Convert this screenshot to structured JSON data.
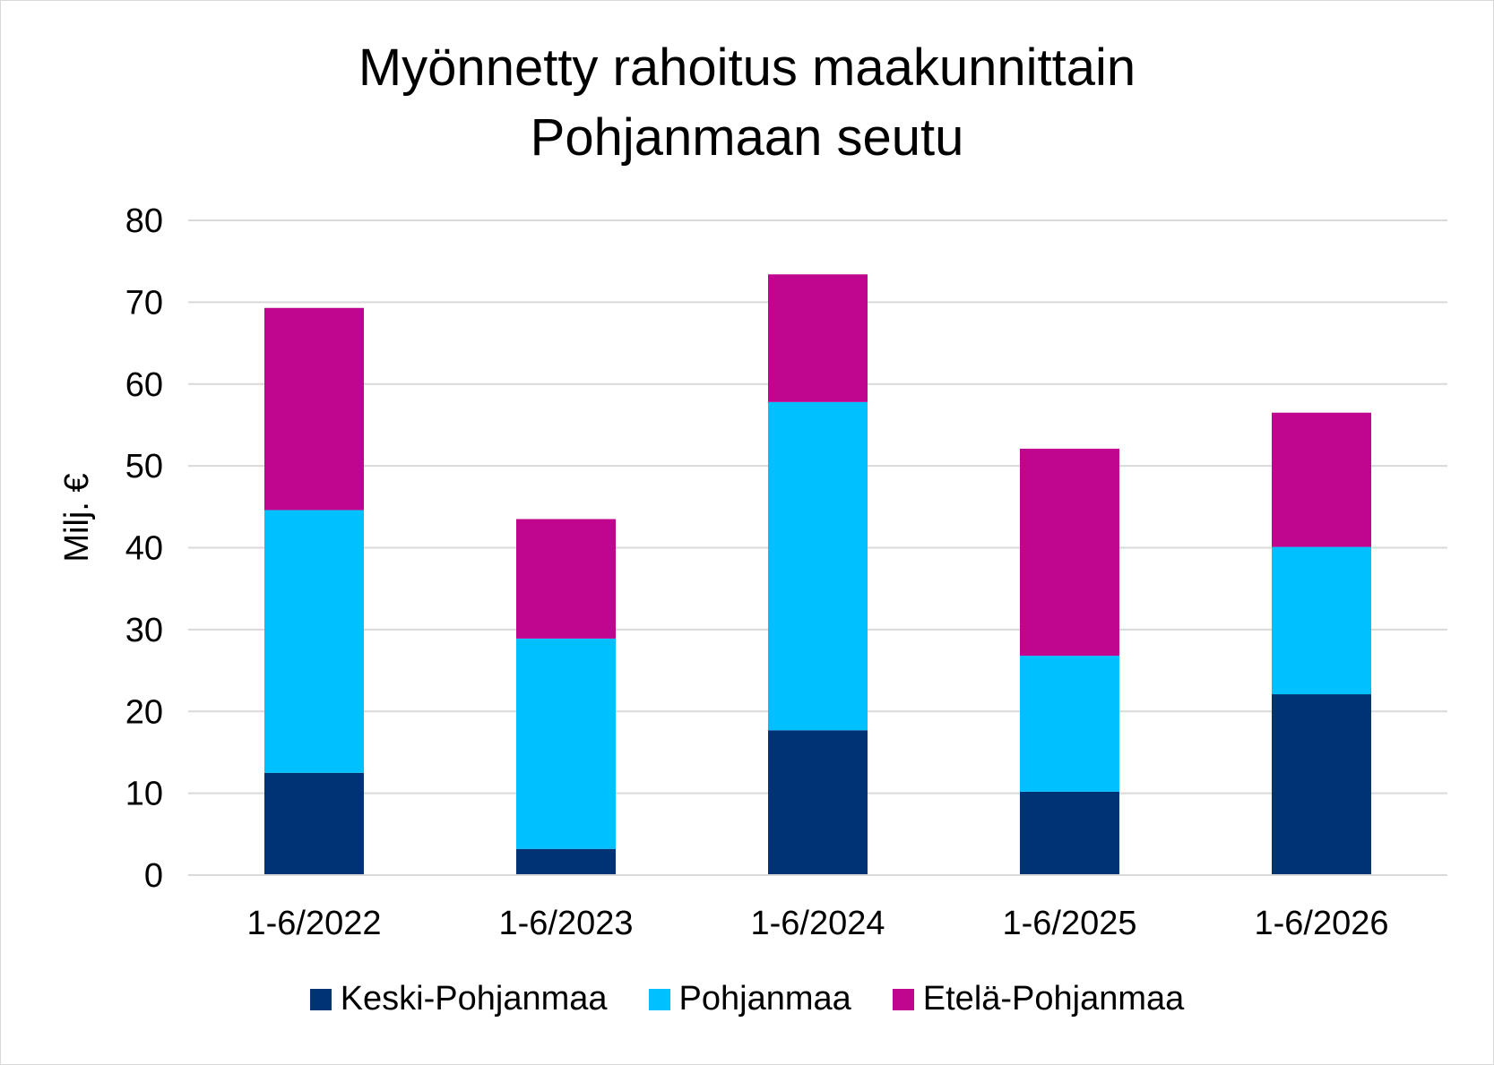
{
  "chart_data": {
    "type": "bar",
    "stacked": true,
    "title": "Myönnetty rahoitus maakunnittain",
    "subtitle": "Pohjanmaan seutu",
    "ylabel": "Milj. €",
    "xlabel": "",
    "ylim": [
      0,
      80
    ],
    "yticks": [
      0,
      10,
      20,
      30,
      40,
      50,
      60,
      70,
      80
    ],
    "grid": true,
    "legend_position": "bottom",
    "categories": [
      "1-6/2022",
      "1-6/2023",
      "1-6/2024",
      "1-6/2025",
      "1-6/2026"
    ],
    "series": [
      {
        "name": "Keski-Pohjanmaa",
        "color": "#003375",
        "values": [
          12.5,
          3.2,
          17.7,
          10.2,
          22.1
        ]
      },
      {
        "name": "Pohjanmaa",
        "color": "#00c0ff",
        "values": [
          32.1,
          25.7,
          40.1,
          16.6,
          18.0
        ]
      },
      {
        "name": "Etelä-Pohjanmaa",
        "color": "#c0068f",
        "values": [
          24.7,
          14.6,
          15.6,
          25.3,
          16.4
        ]
      }
    ]
  }
}
